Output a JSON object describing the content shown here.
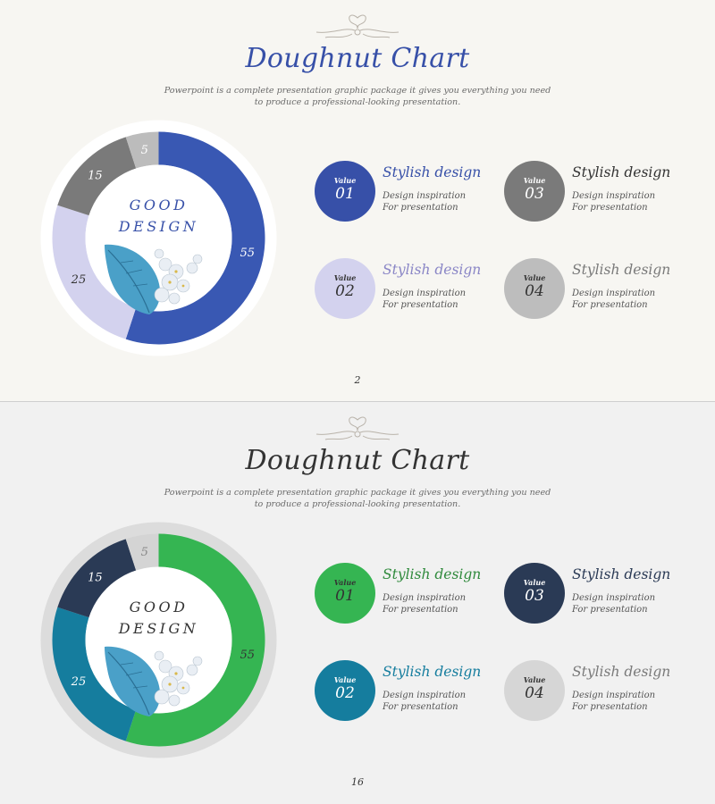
{
  "slides": [
    {
      "title": "Doughnut Chart",
      "subtitle_line1": "Powerpoint is a complete presentation graphic package it gives you everything you need",
      "subtitle_line2": "to produce a professional-looking presentation.",
      "center_line1": "GOOD",
      "center_line2": "DESIGN",
      "page_number": "2",
      "colors": {
        "title": "#3750a8",
        "center_text": "#3750a8",
        "background": "#f7f6f2",
        "ring_backdrop": "#ffffff"
      },
      "chart_data": {
        "type": "pie",
        "variant": "doughnut",
        "title": "",
        "categories": [
          "Value 01",
          "Value 02",
          "Value 03",
          "Value 04"
        ],
        "values": [
          55,
          25,
          15,
          5
        ],
        "data_labels": [
          "55",
          "25",
          "15",
          "5"
        ],
        "colors": [
          "#3958b3",
          "#d3d2ee",
          "#7a7a7a",
          "#bcbcbc"
        ],
        "label_colors": [
          "#ffffff",
          "#333333",
          "#ffffff",
          "#ffffff"
        ]
      },
      "items": [
        {
          "value_label": "Value",
          "number": "01",
          "title": "Stylish design",
          "desc_line1": "Design inspiration",
          "desc_line2": "For presentation",
          "circle_color": "#3750a8",
          "circle_text_color": "#ffffff",
          "title_color": "#3750a8"
        },
        {
          "value_label": "Value",
          "number": "02",
          "title": "Stylish design",
          "desc_line1": "Design inspiration",
          "desc_line2": "For presentation",
          "circle_color": "#d3d2ee",
          "circle_text_color": "#333333",
          "title_color": "#8a86c6"
        },
        {
          "value_label": "Value",
          "number": "03",
          "title": "Stylish design",
          "desc_line1": "Design inspiration",
          "desc_line2": "For presentation",
          "circle_color": "#7a7a7a",
          "circle_text_color": "#ffffff",
          "title_color": "#333333"
        },
        {
          "value_label": "Value",
          "number": "04",
          "title": "Stylish design",
          "desc_line1": "Design inspiration",
          "desc_line2": "For presentation",
          "circle_color": "#bdbdbd",
          "circle_text_color": "#333333",
          "title_color": "#7a7a7a"
        }
      ]
    },
    {
      "title": "Doughnut Chart",
      "subtitle_line1": "Powerpoint is a complete presentation graphic package it gives you everything you need",
      "subtitle_line2": "to produce a professional-looking presentation.",
      "center_line1": "GOOD",
      "center_line2": "DESIGN",
      "page_number": "16",
      "colors": {
        "title": "#333333",
        "center_text": "#333333",
        "background": "#f1f1f1",
        "ring_backdrop": "#dcdcdc"
      },
      "chart_data": {
        "type": "pie",
        "variant": "doughnut",
        "title": "",
        "categories": [
          "Value 01",
          "Value 02",
          "Value 03",
          "Value 04"
        ],
        "values": [
          55,
          25,
          15,
          5
        ],
        "data_labels": [
          "55",
          "25",
          "15",
          "5"
        ],
        "colors": [
          "#35b552",
          "#157d9e",
          "#2a3a55",
          "#d4d4d4"
        ],
        "label_colors": [
          "#333333",
          "#ffffff",
          "#ffffff",
          "#888888"
        ]
      },
      "items": [
        {
          "value_label": "Value",
          "number": "01",
          "title": "Stylish design",
          "desc_line1": "Design inspiration",
          "desc_line2": "For presentation",
          "circle_color": "#35b552",
          "circle_text_color": "#333333",
          "title_color": "#2f8a3c"
        },
        {
          "value_label": "Value",
          "number": "02",
          "title": "Stylish design",
          "desc_line1": "Design inspiration",
          "desc_line2": "For presentation",
          "circle_color": "#157d9e",
          "circle_text_color": "#ffffff",
          "title_color": "#157d9e"
        },
        {
          "value_label": "Value",
          "number": "03",
          "title": "Stylish design",
          "desc_line1": "Design inspiration",
          "desc_line2": "For presentation",
          "circle_color": "#2a3a55",
          "circle_text_color": "#ffffff",
          "title_color": "#2a3a55"
        },
        {
          "value_label": "Value",
          "number": "04",
          "title": "Stylish design",
          "desc_line1": "Design inspiration",
          "desc_line2": "For presentation",
          "circle_color": "#d6d6d6",
          "circle_text_color": "#333333",
          "title_color": "#7a7a7a"
        }
      ]
    }
  ]
}
